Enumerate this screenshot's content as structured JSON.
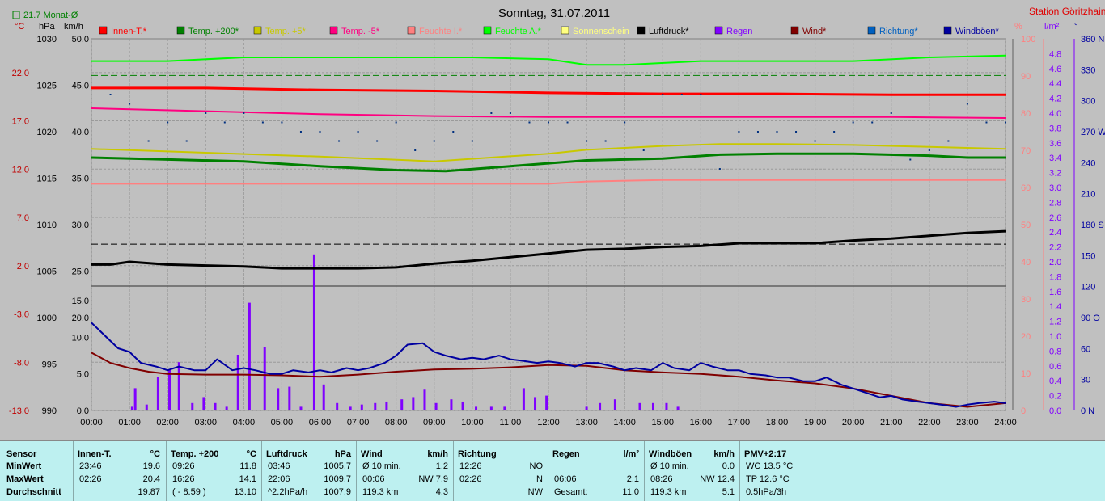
{
  "header": {
    "title": "Sonntag, 31.07.2011",
    "station": "Station Göritzhain",
    "monthly_avg": "21.7 Monat-Ø",
    "unit_c": "°C",
    "unit_hpa": "hPa",
    "unit_kmh": "km/h",
    "unit_pct": "%",
    "unit_lm2": "l/m²",
    "unit_deg": "°"
  },
  "legend": [
    {
      "label": "Innen-T.*",
      "color": "#ff0000"
    },
    {
      "label": "Temp. +200*",
      "color": "#008000"
    },
    {
      "label": "Temp. +5*",
      "color": "#c8c800"
    },
    {
      "label": "Temp. -5*",
      "color": "#ff0080"
    },
    {
      "label": "Feuchte I.*",
      "color": "#ff8080"
    },
    {
      "label": "Feuchte A.*",
      "color": "#00ff00"
    },
    {
      "label": "Sonnenschein",
      "color": "#ffff80"
    },
    {
      "label": "Luftdruck*",
      "color": "#000000"
    },
    {
      "label": "Regen",
      "color": "#8000ff"
    },
    {
      "label": "Wind*",
      "color": "#800000"
    },
    {
      "label": "Richtung*",
      "color": "#0060c0"
    },
    {
      "label": "Windböen*",
      "color": "#0000a0"
    }
  ],
  "chart_data": {
    "type": "line",
    "x_ticks": [
      "00:00",
      "01:00",
      "02:00",
      "03:00",
      "04:00",
      "05:00",
      "06:00",
      "07:00",
      "08:00",
      "09:00",
      "10:00",
      "11:00",
      "12:00",
      "13:00",
      "14:00",
      "15:00",
      "16:00",
      "17:00",
      "18:00",
      "19:00",
      "20:00",
      "21:00",
      "22:00",
      "23:00",
      "24:00"
    ],
    "x_range_hours": [
      0,
      24
    ],
    "axes": {
      "temp_c": {
        "ticks": [
          "22.0",
          "17.0",
          "12.0",
          "7.0",
          "2.0",
          "-3.0",
          "-8.0",
          "-13.0"
        ],
        "range": [
          -13,
          25.5
        ],
        "color": "#c00000"
      },
      "pressure_hpa": {
        "ticks": [
          "1030",
          "1025",
          "1020",
          "1015",
          "1010",
          "1005",
          "1000",
          "995",
          "990"
        ],
        "range": [
          990,
          1030
        ]
      },
      "upper_kmh": {
        "ticks": [
          "50.0",
          "45.0",
          "40.0",
          "35.0",
          "30.0",
          "25.0",
          "20.0"
        ]
      },
      "lower_kmh": {
        "ticks": [
          "15.0",
          "10.0",
          "5.0",
          "0.0"
        ],
        "range": [
          0,
          17
        ]
      },
      "humidity_pct": {
        "ticks": [
          "100",
          "90",
          "80",
          "70",
          "60",
          "50",
          "40",
          "30",
          "20",
          "10",
          "0"
        ],
        "range": [
          0,
          100
        ],
        "color": "#ff8080"
      },
      "rain_lm2": {
        "ticks": [
          "4.8",
          "4.6",
          "4.4",
          "4.2",
          "4.0",
          "3.8",
          "3.6",
          "3.4",
          "3.2",
          "3.0",
          "2.8",
          "2.6",
          "2.4",
          "2.2",
          "2.0",
          "1.8",
          "1.6",
          "1.4",
          "1.2",
          "1.0",
          "0.8",
          "0.6",
          "0.4",
          "0.2",
          "0.0"
        ],
        "range": [
          0,
          5.0
        ],
        "color": "#8000ff"
      },
      "direction_deg": {
        "ticks": [
          "360 N",
          "330",
          "300",
          "270 W",
          "240",
          "210",
          "180 S",
          "150",
          "120",
          "90 O",
          "60",
          "30",
          "0 N"
        ],
        "range": [
          0,
          360
        ],
        "color": "#0000a0"
      }
    },
    "reference_lines": {
      "monthly_avg_temp_c": 21.7,
      "pressure_reference_hpa": 1007.9
    },
    "series": [
      {
        "name": "Innen-T.*",
        "axis": "temp_c",
        "x": [
          0,
          3,
          6,
          9,
          12,
          15,
          18,
          21,
          24
        ],
        "values": [
          20.4,
          20.4,
          20.2,
          20.1,
          19.9,
          19.8,
          19.8,
          19.7,
          19.7
        ]
      },
      {
        "name": "Temp. -5*",
        "axis": "temp_c",
        "x": [
          0,
          3,
          6,
          9,
          12,
          15,
          18,
          21,
          24
        ],
        "values": [
          18.3,
          18.0,
          17.7,
          17.5,
          17.4,
          17.4,
          17.4,
          17.4,
          17.3
        ]
      },
      {
        "name": "Temp. +5*",
        "axis": "temp_c",
        "x": [
          0,
          3,
          6,
          9,
          12,
          13,
          15,
          16.5,
          18,
          20,
          22,
          24
        ],
        "values": [
          14.1,
          13.7,
          13.3,
          12.8,
          13.6,
          14.0,
          14.4,
          14.6,
          14.6,
          14.5,
          14.3,
          14.1
        ]
      },
      {
        "name": "Temp. +200*",
        "axis": "temp_c",
        "x": [
          0,
          2,
          4,
          6,
          8,
          9.3,
          11,
          13,
          15,
          16.5,
          18,
          19,
          20,
          22,
          23,
          24
        ],
        "values": [
          13.2,
          13.0,
          12.8,
          12.3,
          11.9,
          11.8,
          12.3,
          12.9,
          13.1,
          13.5,
          13.6,
          13.6,
          13.6,
          13.4,
          13.2,
          13.2
        ]
      },
      {
        "name": "Feuchte I.*",
        "axis": "humidity_pct",
        "x": [
          0,
          3,
          6,
          9,
          12,
          13,
          15,
          18,
          21,
          24
        ],
        "values": [
          61,
          61,
          61,
          61,
          61,
          61.6,
          62,
          62,
          62,
          62
        ]
      },
      {
        "name": "Feuchte A.*",
        "axis": "humidity_pct",
        "x": [
          0,
          2,
          4,
          6,
          8,
          10,
          12,
          13,
          14,
          16,
          18,
          20,
          22,
          24
        ],
        "values": [
          94,
          94,
          95,
          95,
          95,
          95,
          94.5,
          93,
          93,
          94,
          94,
          94,
          95,
          95.5
        ]
      },
      {
        "name": "Luftdruck*",
        "axis": "pressure_hpa",
        "x": [
          0,
          0.5,
          1,
          2,
          3,
          4,
          5,
          6,
          7,
          8,
          9,
          10,
          11,
          12,
          13,
          14,
          15,
          16,
          17,
          18,
          19,
          20,
          21,
          22,
          23,
          24
        ],
        "values": [
          1005.7,
          1005.7,
          1006,
          1005.7,
          1005.6,
          1005.5,
          1005.3,
          1005.3,
          1005.3,
          1005.4,
          1005.8,
          1006.1,
          1006.5,
          1006.9,
          1007.3,
          1007.4,
          1007.6,
          1007.7,
          1008.0,
          1008.0,
          1008.0,
          1008.3,
          1008.5,
          1008.8,
          1009.1,
          1009.3
        ]
      },
      {
        "name": "Luftdruck* Punkte",
        "axis": "pressure_hpa",
        "x": [
          0.5,
          1,
          1.5,
          2,
          2.5,
          3,
          3.5,
          4,
          4.5,
          5,
          5.5,
          6,
          6.5,
          7,
          7.5,
          8,
          8.5,
          9,
          9.5,
          10,
          10.5,
          11,
          11.5,
          12,
          12.5,
          13,
          13.5,
          14,
          14.5,
          15,
          15.5,
          16,
          16.5,
          17,
          17.5,
          18,
          18.5,
          19,
          19.5,
          20,
          20.5,
          21,
          21.5,
          22,
          22.5,
          23,
          23.5,
          24
        ],
        "values": [
          1024,
          1023,
          1019,
          1021,
          1019,
          1022,
          1021,
          1022,
          1021,
          1021,
          1020,
          1020,
          1019,
          1020,
          1019,
          1021,
          1018,
          1019,
          1020,
          1019,
          1022,
          1022,
          1021,
          1021,
          1021,
          1019,
          1019,
          1021,
          1018,
          1024,
          1024,
          1024,
          1016,
          1020,
          1020,
          1020,
          1020,
          1019,
          1020,
          1021,
          1021,
          1022,
          1017,
          1018,
          1019,
          1023,
          1021,
          1021
        ]
      },
      {
        "name": "Wind*",
        "axis": "lower_kmh",
        "x": [
          0,
          0.5,
          1,
          1.5,
          2,
          3,
          4,
          5,
          6,
          7,
          8,
          9,
          10,
          11,
          12,
          13,
          14,
          15,
          16,
          17,
          18,
          19,
          20,
          21,
          22,
          23,
          24
        ],
        "values": [
          7.9,
          6.5,
          5.8,
          5.3,
          5.0,
          4.9,
          4.9,
          4.8,
          4.6,
          4.9,
          5.3,
          5.6,
          5.7,
          5.9,
          6.2,
          6.1,
          5.5,
          5.2,
          5.0,
          4.6,
          4.1,
          3.7,
          3.0,
          2.0,
          1.0,
          0.5,
          1.0
        ]
      },
      {
        "name": "Windböen*",
        "axis": "lower_kmh",
        "x": [
          0,
          0.3,
          0.7,
          1,
          1.3,
          1.7,
          2,
          2.3,
          2.7,
          3,
          3.3,
          3.7,
          4,
          4.3,
          4.7,
          5,
          5.3,
          5.7,
          6,
          6.3,
          6.7,
          7,
          7.3,
          7.7,
          8,
          8.3,
          8.7,
          9,
          9.3,
          9.7,
          10,
          10.3,
          10.7,
          11,
          11.3,
          11.7,
          12,
          12.3,
          12.7,
          13,
          13.3,
          13.7,
          14,
          14.3,
          14.7,
          15,
          15.3,
          15.7,
          16,
          16.3,
          16.7,
          17,
          17.3,
          17.7,
          18,
          18.3,
          18.7,
          19,
          19.3,
          19.7,
          20,
          20.3,
          20.7,
          21,
          21.3,
          21.7,
          22,
          22.3,
          22.7,
          23,
          23.3,
          23.7,
          24
        ],
        "values": [
          12.0,
          10.5,
          8.5,
          8.0,
          6.5,
          6.0,
          5.5,
          6.0,
          5.5,
          5.5,
          7.0,
          5.5,
          5.8,
          5.5,
          5.0,
          5.0,
          5.5,
          5.2,
          5.5,
          5.2,
          5.8,
          5.5,
          5.8,
          6.5,
          7.5,
          9.0,
          9.2,
          8.0,
          7.5,
          7.0,
          7.2,
          7.0,
          7.5,
          7.0,
          6.8,
          6.5,
          6.7,
          6.5,
          6.0,
          6.5,
          6.5,
          6.0,
          5.5,
          5.8,
          5.5,
          6.5,
          5.8,
          5.5,
          6.5,
          6.0,
          5.5,
          5.5,
          5.0,
          4.8,
          4.5,
          4.5,
          4.0,
          4.0,
          4.5,
          3.5,
          3.0,
          2.5,
          1.8,
          2.0,
          1.5,
          1.2,
          1.0,
          0.8,
          0.5,
          0.8,
          1.0,
          1.2,
          1.0
        ]
      }
    ],
    "rain_bars": {
      "name": "Regen",
      "axis": "rain_lm2",
      "x": [
        1.07,
        1.15,
        1.45,
        1.75,
        2.05,
        2.3,
        2.65,
        2.95,
        3.25,
        3.55,
        3.85,
        4.15,
        4.55,
        4.9,
        5.2,
        5.5,
        5.85,
        6.1,
        6.45,
        6.8,
        7.1,
        7.45,
        7.75,
        8.15,
        8.45,
        8.75,
        9.05,
        9.45,
        9.75,
        10.1,
        10.5,
        10.85,
        11.35,
        11.65,
        11.95,
        13.0,
        13.35,
        13.75,
        14.4,
        14.75,
        15.1,
        15.4
      ],
      "values": [
        0.05,
        0.3,
        0.08,
        0.45,
        0.55,
        0.65,
        0.1,
        0.18,
        0.1,
        0.05,
        0.75,
        1.45,
        0.85,
        0.3,
        0.32,
        0.05,
        2.1,
        0.35,
        0.1,
        0.05,
        0.08,
        0.1,
        0.12,
        0.15,
        0.18,
        0.28,
        0.1,
        0.15,
        0.12,
        0.05,
        0.05,
        0.05,
        0.3,
        0.18,
        0.2,
        0.05,
        0.1,
        0.15,
        0.1,
        0.1,
        0.1,
        0.05
      ]
    }
  },
  "table": {
    "rows": [
      "Sensor",
      "MinWert",
      "MaxWert",
      "Durchschnitt"
    ],
    "columns": [
      {
        "title": "Innen-T.",
        "unit": "°C",
        "cells": [
          [
            "23:46",
            "19.6"
          ],
          [
            "02:26",
            "20.4"
          ],
          [
            "",
            "19.87"
          ]
        ]
      },
      {
        "title": "Temp. +200",
        "unit": "°C",
        "cells": [
          [
            "09:26",
            "11.8"
          ],
          [
            "16:26",
            "14.1"
          ],
          [
            "( - 8.59 )",
            "13.10"
          ]
        ]
      },
      {
        "title": "Luftdruck",
        "unit": "hPa",
        "cells": [
          [
            "03:46",
            "1005.7"
          ],
          [
            "22:06",
            "1009.7"
          ],
          [
            "^2.2hPa/h",
            "1007.9"
          ]
        ]
      },
      {
        "title": "Wind",
        "unit": "km/h",
        "cells": [
          [
            "Ø 10 min.",
            "1.2"
          ],
          [
            "00:06",
            "NW 7.9"
          ],
          [
            "119.3 km",
            "4.3"
          ]
        ]
      },
      {
        "title": "Richtung",
        "unit": "",
        "cells": [
          [
            "12:26",
            "NO"
          ],
          [
            "02:26",
            "N"
          ],
          [
            "",
            "NW"
          ]
        ]
      },
      {
        "title": "Regen",
        "unit": "l/m²",
        "cells": [
          [
            "",
            ""
          ],
          [
            "06:06",
            "2.1"
          ],
          [
            "Gesamt:",
            "11.0"
          ]
        ]
      },
      {
        "title": "Windböen",
        "unit": "km/h",
        "cells": [
          [
            "Ø 10 min.",
            "0.0"
          ],
          [
            "08:26",
            "NW 12.4"
          ],
          [
            "119.3 km",
            "5.1"
          ]
        ]
      },
      {
        "title": "PMV+2:17",
        "unit": "",
        "cells": [
          [
            "WC 13.5 °C",
            ""
          ],
          [
            "TP 12.6 °C",
            ""
          ],
          [
            "0.5hPa/3h",
            ""
          ]
        ]
      }
    ]
  }
}
